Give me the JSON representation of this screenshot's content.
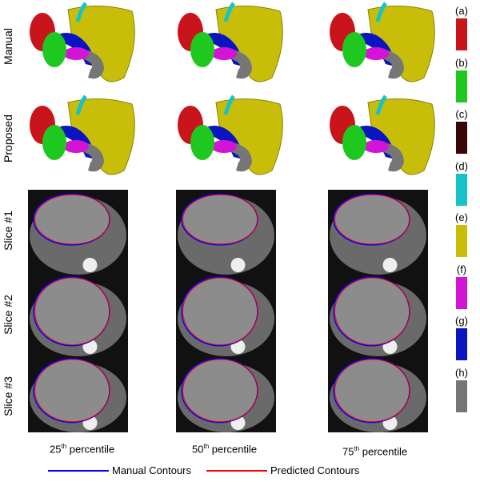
{
  "row_labels": [
    "Manual",
    "Proposed",
    "Slice #1",
    "Slice #2",
    "Slice #3"
  ],
  "columns": [
    {
      "num": "25",
      "sup": "th",
      "label": " percentile"
    },
    {
      "num": "50",
      "sup": "th",
      "label": " percentile"
    },
    {
      "num": "75",
      "sup": "th",
      "label": " percentile"
    }
  ],
  "organ_key": [
    {
      "label": "(a)",
      "color": "#c8141a"
    },
    {
      "label": "(b)",
      "color": "#1ec81e"
    },
    {
      "label": "(c)",
      "color": "#3a0505"
    },
    {
      "label": "(d)",
      "color": "#14c4c8"
    },
    {
      "label": "(e)",
      "color": "#c8be0a"
    },
    {
      "label": "(f)",
      "color": "#d414d4"
    },
    {
      "label": "(g)",
      "color": "#0a14c0"
    },
    {
      "label": "(h)",
      "color": "#767676"
    }
  ],
  "legend": {
    "manual": "Manual Contours",
    "manual_color": "#0000ff",
    "predicted": "Predicted Contours",
    "predicted_color": "#ff0000"
  }
}
